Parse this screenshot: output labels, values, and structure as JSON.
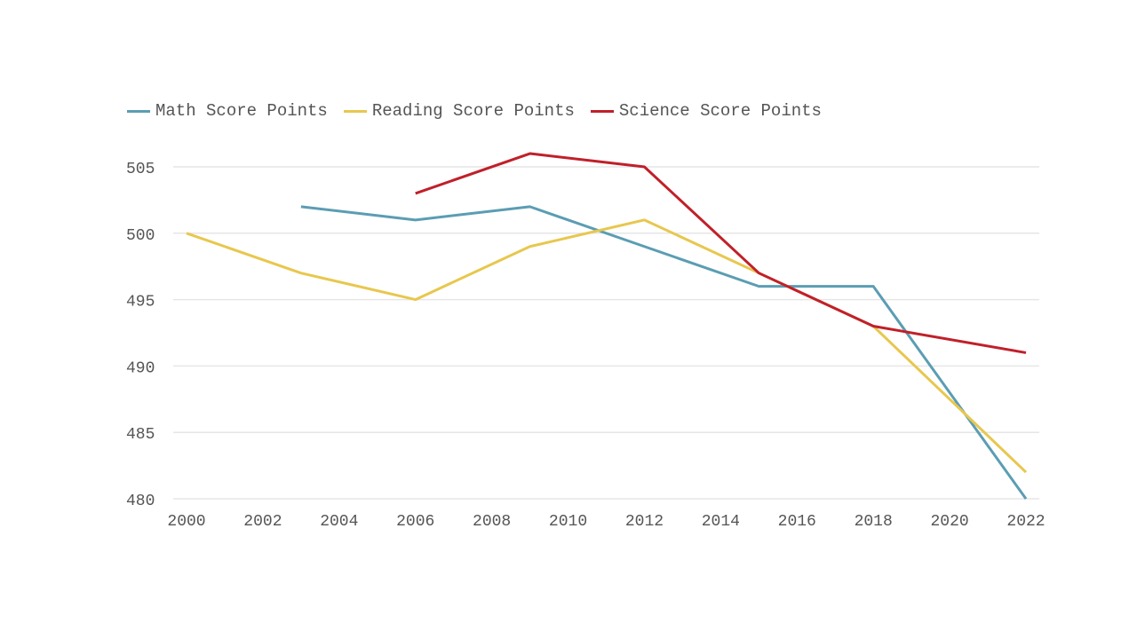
{
  "chart_data": {
    "type": "line",
    "title": "",
    "xlabel": "",
    "ylabel": "",
    "xlim": [
      2000,
      2022
    ],
    "ylim": [
      480,
      505
    ],
    "x_ticks": [
      "2000",
      "2002",
      "2004",
      "2006",
      "2008",
      "2010",
      "2012",
      "2014",
      "2016",
      "2018",
      "2020",
      "2022"
    ],
    "y_ticks": [
      "505",
      "500",
      "495",
      "490",
      "485",
      "480"
    ],
    "grid": "horizontal",
    "legend_position": "top-left",
    "series": [
      {
        "name": "Math Score Points",
        "color": "#5b9db3",
        "x": [
          2003,
          2006,
          2009,
          2012,
          2015,
          2018,
          2022
        ],
        "values": [
          502,
          501,
          502,
          499,
          496,
          496,
          480
        ]
      },
      {
        "name": "Reading Score Points",
        "color": "#e8c74e",
        "x": [
          2000,
          2003,
          2006,
          2009,
          2012,
          2015,
          2018,
          2022
        ],
        "values": [
          500,
          497,
          495,
          499,
          501,
          497,
          493,
          482
        ]
      },
      {
        "name": "Science Score Points",
        "color": "#c0202a",
        "x": [
          2006,
          2009,
          2012,
          2015,
          2018,
          2022
        ],
        "values": [
          503,
          506,
          505,
          497,
          493,
          491
        ]
      }
    ]
  }
}
